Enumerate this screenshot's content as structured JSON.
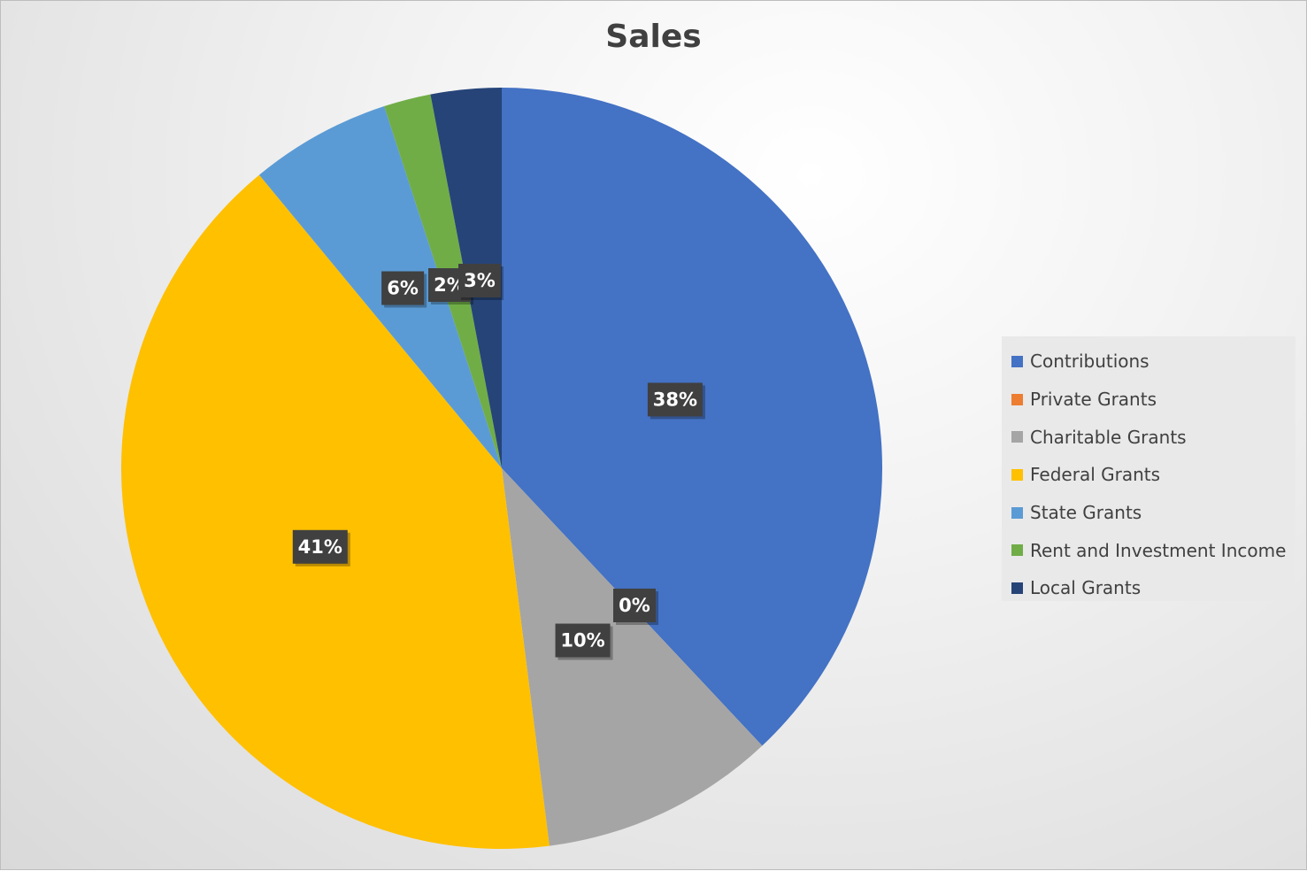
{
  "chart_data": {
    "type": "pie",
    "title": "Sales",
    "categories": [
      "Contributions",
      "Private Grants",
      "Charitable Grants",
      "Federal Grants",
      "State Grants",
      "Rent and Investment Income",
      "Local Grants"
    ],
    "values": [
      38,
      0,
      10,
      41,
      6,
      2,
      3
    ],
    "data_labels": [
      "38%",
      "0%",
      "10%",
      "41%",
      "6%",
      "2%",
      "3%"
    ],
    "colors": [
      "#4472C4",
      "#ED7D31",
      "#A5A5A5",
      "#FFC000",
      "#5B9BD5",
      "#70AD47",
      "#264478"
    ],
    "start_angle": "12 o'clock",
    "direction": "clockwise",
    "legend_position": "right"
  }
}
